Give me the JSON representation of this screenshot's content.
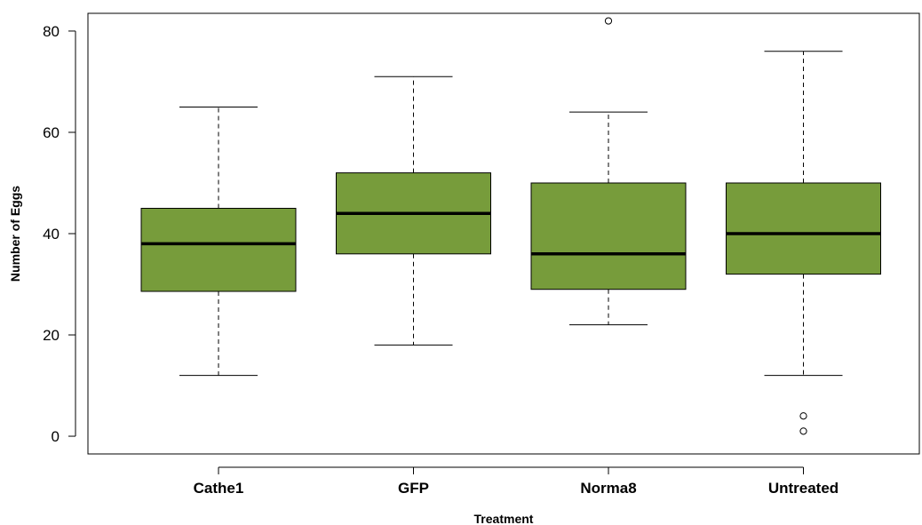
{
  "chart_data": {
    "type": "boxplot",
    "title": "",
    "xlabel": "Treatment",
    "ylabel": "Number of Eggs",
    "ylim": [
      -3.5,
      83.5
    ],
    "yticks": [
      0,
      20,
      40,
      60,
      80
    ],
    "grid": false,
    "box_color": "#779c3b",
    "categories": [
      "Cathe1",
      "GFP",
      "Norma8",
      "Untreated"
    ],
    "boxes": [
      {
        "category": "Cathe1",
        "whisker_low": 12,
        "q1": 28.6,
        "median": 38,
        "q3": 45,
        "whisker_high": 65,
        "outliers": []
      },
      {
        "category": "GFP",
        "whisker_low": 18,
        "q1": 36,
        "median": 44,
        "q3": 52,
        "whisker_high": 71,
        "outliers": []
      },
      {
        "category": "Norma8",
        "whisker_low": 22,
        "q1": 29,
        "median": 36,
        "q3": 50,
        "whisker_high": 64,
        "outliers": [
          82
        ]
      },
      {
        "category": "Untreated",
        "whisker_low": 12,
        "q1": 32,
        "median": 40,
        "q3": 50,
        "whisker_high": 76,
        "outliers": [
          4,
          1
        ]
      }
    ]
  }
}
